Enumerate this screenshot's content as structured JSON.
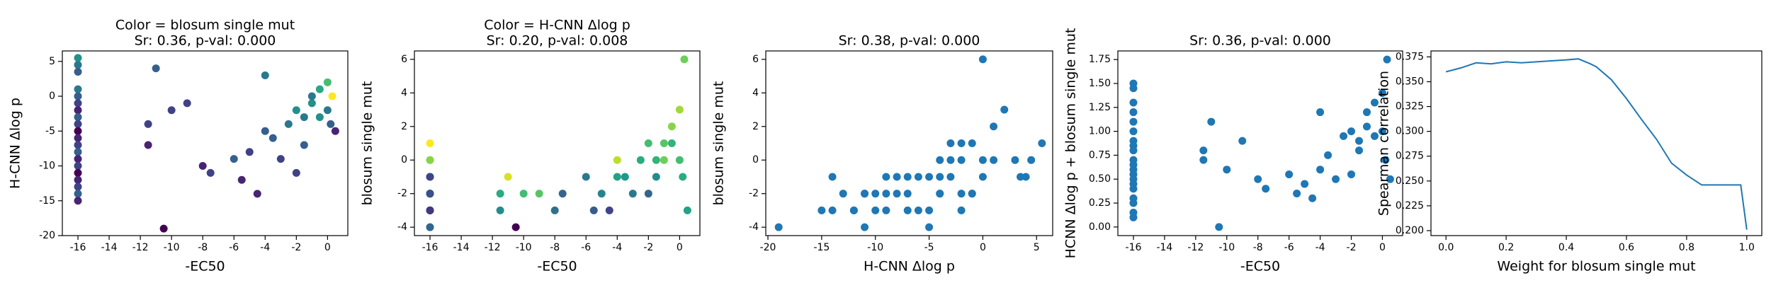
{
  "chart_data": [
    {
      "type": "scatter",
      "title": [
        "Color = blosum single mut",
        "Sr: 0.36, p-val: 0.000"
      ],
      "xlabel": "-EC50",
      "ylabel": "H-CNN Δlog p",
      "cmap": "viridis",
      "x": [
        -16,
        -16,
        -16,
        -16,
        -16,
        -16,
        -16,
        -16,
        -16,
        -16,
        -16,
        -16,
        -16,
        -16,
        -16,
        -16,
        -16,
        -16,
        -16,
        -16,
        -11.5,
        -11,
        -11.5,
        -10.5,
        -10,
        -9,
        -8,
        -7.5,
        -6,
        -5.5,
        -5,
        -4.5,
        -4,
        -4,
        -3.5,
        -3,
        -2.5,
        -2,
        -2,
        -1.5,
        -1.5,
        -1,
        -1,
        -0.5,
        -0.5,
        0,
        0,
        0.2,
        0.3,
        0.5
      ],
      "y": [
        5.5,
        4.5,
        3.5,
        1,
        0,
        -1,
        -2,
        -3,
        -4,
        -5,
        -6,
        -7,
        -8,
        -9,
        -10,
        -11,
        -12,
        -13,
        -14,
        -15,
        -4,
        4,
        -7,
        -19,
        -2,
        -1,
        -10,
        -11,
        -9,
        -12,
        -8,
        -14,
        3,
        -5,
        -6,
        -9,
        -4,
        -11,
        -2,
        -3,
        -7,
        -1,
        0,
        -3,
        1,
        -2,
        2,
        -4,
        0,
        -5
      ],
      "c": [
        1,
        0,
        -1,
        0,
        -1,
        -2,
        -3,
        -1,
        -2,
        -4,
        -3,
        -2,
        -1,
        -3,
        -2,
        -4,
        -3,
        -2,
        -1,
        -3,
        -2,
        -1,
        -3,
        -4,
        -2,
        -2,
        -3,
        -2,
        -1,
        -3,
        -2,
        -3,
        0,
        -1,
        -1,
        -2,
        0,
        -2,
        1,
        0,
        -1,
        1,
        0,
        1,
        2,
        0,
        3,
        -1,
        6,
        -3
      ],
      "xlim": [
        -17,
        1.3
      ],
      "ylim": [
        -20,
        6.5
      ],
      "xticks": [
        -16,
        -14,
        -12,
        -10,
        -8,
        -6,
        -4,
        -2,
        0
      ],
      "yticks": [
        -20,
        -15,
        -10,
        -5,
        0,
        5
      ]
    },
    {
      "type": "scatter",
      "title": [
        "Color = H-CNN Δlog p",
        "Sr: 0.20, p-val: 0.008"
      ],
      "xlabel": "-EC50",
      "ylabel": "blosum single mut",
      "cmap": "viridis",
      "x": [
        -16,
        -16,
        -16,
        -16,
        -16,
        -16,
        -16,
        -16,
        -16,
        -16,
        -16,
        -16,
        -16,
        -16,
        -16,
        -16,
        -16,
        -16,
        -16,
        -16,
        -11.5,
        -11,
        -11.5,
        -10.5,
        -10,
        -9,
        -8,
        -7.5,
        -6,
        -5.5,
        -5,
        -4.5,
        -4,
        -4,
        -3.5,
        -3,
        -2.5,
        -2,
        -2,
        -1.5,
        -1.5,
        -1,
        -1,
        -0.5,
        -0.5,
        0,
        0,
        0.2,
        0.3,
        0.5
      ],
      "y": [
        1,
        0,
        -1,
        0,
        -1,
        -2,
        -3,
        -1,
        -2,
        -4,
        -3,
        -2,
        -1,
        -3,
        -2,
        -4,
        -3,
        -2,
        -1,
        -3,
        -2,
        -1,
        -3,
        -4,
        -2,
        -2,
        -3,
        -2,
        -1,
        -3,
        -2,
        -3,
        0,
        -1,
        -1,
        -2,
        0,
        -2,
        1,
        0,
        -1,
        1,
        0,
        1,
        2,
        0,
        3,
        -1,
        6,
        -3
      ],
      "c": [
        5.5,
        4.5,
        3.5,
        1,
        0,
        -1,
        -2,
        -3,
        -4,
        -5,
        -6,
        -7,
        -8,
        -9,
        -10,
        -11,
        -12,
        -13,
        -14,
        -15,
        -4,
        4,
        -7,
        -19,
        -2,
        -1,
        -10,
        -11,
        -9,
        -12,
        -8,
        -14,
        3,
        -5,
        -6,
        -9,
        -4,
        -11,
        -2,
        -3,
        -7,
        -1,
        0,
        -3,
        1,
        -2,
        2,
        -4,
        0,
        -5
      ],
      "xlim": [
        -17,
        1.3
      ],
      "ylim": [
        -4.5,
        6.5
      ],
      "xticks": [
        -16,
        -14,
        -12,
        -10,
        -8,
        -6,
        -4,
        -2,
        0
      ],
      "yticks": [
        -4,
        -2,
        0,
        2,
        4,
        6
      ]
    },
    {
      "type": "scatter",
      "title": [
        "Sr: 0.38, p-val: 0.000"
      ],
      "xlabel": "H-CNN Δlog p",
      "ylabel": "blosum single mut",
      "color": "#1f77b4",
      "x": [
        5.5,
        4.5,
        3.5,
        1,
        0,
        -1,
        -2,
        -3,
        -4,
        -5,
        -6,
        -7,
        -8,
        -9,
        -10,
        -11,
        -12,
        -13,
        -14,
        -15,
        -4,
        4,
        -7,
        -19,
        -2,
        -1,
        -10,
        -11,
        -9,
        -12,
        -8,
        -14,
        3,
        -5,
        -6,
        -9,
        -4,
        -11,
        -2,
        -3,
        -7,
        -1,
        0,
        -3,
        1,
        -2,
        2,
        -4,
        0,
        -5
      ],
      "y": [
        1,
        0,
        -1,
        0,
        -1,
        -2,
        -3,
        -1,
        -2,
        -4,
        -3,
        -2,
        -1,
        -3,
        -2,
        -4,
        -3,
        -2,
        -1,
        -3,
        -2,
        -1,
        -3,
        -4,
        -2,
        -2,
        -3,
        -2,
        -1,
        -3,
        -2,
        -3,
        0,
        -1,
        -1,
        -2,
        0,
        -2,
        1,
        0,
        -1,
        1,
        0,
        1,
        2,
        0,
        3,
        -1,
        6,
        -3
      ],
      "xlim": [
        -20.2,
        6.5
      ],
      "ylim": [
        -4.5,
        6.5
      ],
      "xticks": [
        -20,
        -15,
        -10,
        -5,
        0,
        5
      ],
      "yticks": [
        -4,
        -2,
        0,
        2,
        4,
        6
      ]
    },
    {
      "type": "scatter",
      "title": [
        "Sr: 0.36, p-val: 0.000"
      ],
      "xlabel": "-EC50",
      "ylabel": "HCNN Δlog p + blosum single mut",
      "color": "#1f77b4",
      "x": [
        -16,
        -16,
        -16,
        -16,
        -16,
        -16,
        -16,
        -16,
        -16,
        -16,
        -16,
        -16,
        -16,
        -16,
        -16,
        -16,
        -16,
        -16,
        -16,
        -16,
        -11.5,
        -11,
        -11.5,
        -10.5,
        -10,
        -9,
        -8,
        -7.5,
        -6,
        -5.5,
        -5,
        -4.5,
        -4,
        -4,
        -3.5,
        -3,
        -2.5,
        -2,
        -2,
        -1.5,
        -1.5,
        -1,
        -1,
        -0.5,
        -0.5,
        0,
        0,
        0.2,
        0.3,
        0.5
      ],
      "y": [
        1.5,
        1.45,
        1.3,
        1.2,
        1.1,
        1.0,
        0.9,
        0.85,
        0.8,
        0.7,
        0.65,
        0.6,
        0.55,
        0.5,
        0.45,
        0.4,
        0.3,
        0.25,
        0.15,
        0.1,
        0.8,
        1.1,
        0.7,
        0.0,
        0.6,
        0.9,
        0.5,
        0.4,
        0.55,
        0.35,
        0.45,
        0.3,
        1.2,
        0.6,
        0.75,
        0.5,
        0.95,
        0.55,
        1.0,
        0.9,
        0.8,
        1.05,
        1.2,
        0.95,
        1.3,
        1.0,
        1.4,
        0.7,
        1.75,
        0.5
      ],
      "xlim": [
        -17,
        1.3
      ],
      "ylim": [
        -0.09,
        1.84
      ],
      "xticks": [
        -16,
        -14,
        -12,
        -10,
        -8,
        -6,
        -4,
        -2,
        0
      ],
      "yticks": [
        {
          "value": 0,
          "label": "0.00"
        },
        0.25,
        {
          "value": 0.5,
          "label": "0.50"
        },
        0.75,
        {
          "value": 1,
          "label": "1.00"
        },
        1.25,
        {
          "value": 1.5,
          "label": "1.50"
        },
        1.75
      ]
    },
    {
      "type": "line",
      "title": [],
      "xlabel": "Weight for blosum single mut",
      "ylabel": "Spearman correlation",
      "color": "#1f77b4",
      "x": [
        0,
        0.05,
        0.1,
        0.15,
        0.2,
        0.25,
        0.3,
        0.35,
        0.4,
        0.44,
        0.48,
        0.5,
        0.55,
        0.6,
        0.65,
        0.7,
        0.75,
        0.8,
        0.85,
        0.9,
        0.95,
        0.98,
        1.0
      ],
      "y": [
        0.36,
        0.364,
        0.369,
        0.368,
        0.37,
        0.369,
        0.37,
        0.371,
        0.372,
        0.373,
        0.368,
        0.365,
        0.352,
        0.333,
        0.312,
        0.292,
        0.268,
        0.256,
        0.246,
        0.246,
        0.246,
        0.246,
        0.201
      ],
      "xlim": [
        -0.05,
        1.05
      ],
      "ylim": [
        0.195,
        0.381
      ],
      "xticks": [
        {
          "value": 0,
          "label": "0.0"
        },
        0.2,
        0.4,
        0.6,
        0.8,
        {
          "value": 1,
          "label": "1.0"
        }
      ],
      "yticks": [
        {
          "value": 0.2,
          "label": "0.200"
        },
        0.225,
        {
          "value": 0.25,
          "label": "0.250"
        },
        0.275,
        {
          "value": 0.3,
          "label": "0.300"
        },
        0.325,
        {
          "value": 0.35,
          "label": "0.350"
        },
        0.375
      ]
    }
  ]
}
